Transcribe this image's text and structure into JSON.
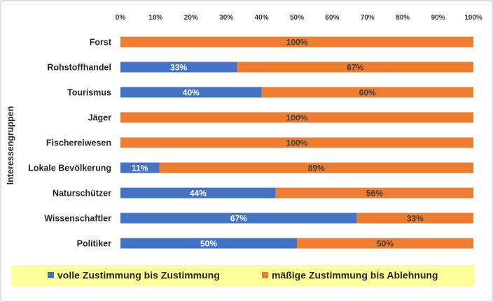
{
  "chart_data": {
    "type": "bar",
    "orientation": "horizontal",
    "stacked": "percent",
    "categories": [
      "Forst",
      "Rohstoffhandel",
      "Tourismus",
      "Jäger",
      "Fischereiwesen",
      "Lokale Bevölkerung",
      "Naturschützer",
      "Wissenschaftler",
      "Politiker"
    ],
    "series": [
      {
        "name": "volle Zustimmung bis Zustimmung",
        "color": "#4472C4",
        "values": [
          0,
          33,
          40,
          0,
          0,
          11,
          44,
          67,
          50
        ]
      },
      {
        "name": "mäßige Zustimmung bis Ablehnung",
        "color": "#ED7D31",
        "values": [
          100,
          67,
          60,
          100,
          100,
          89,
          56,
          33,
          50
        ]
      }
    ],
    "data_labels": [
      [
        "",
        "33%",
        "40%",
        "",
        "",
        "11%",
        "44%",
        "67%",
        "50%"
      ],
      [
        "100%",
        "67%",
        "60%",
        "100%",
        "100%",
        "89%",
        "56%",
        "33%",
        "50%"
      ]
    ],
    "ylabel": "Interessengruppen",
    "xlim": [
      0,
      100
    ],
    "x_ticks": [
      "0%",
      "10%",
      "20%",
      "30%",
      "40%",
      "50%",
      "60%",
      "70%",
      "80%",
      "90%",
      "100%"
    ],
    "legend_position": "bottom",
    "legend_background": "#FFFF99",
    "grid": false
  }
}
